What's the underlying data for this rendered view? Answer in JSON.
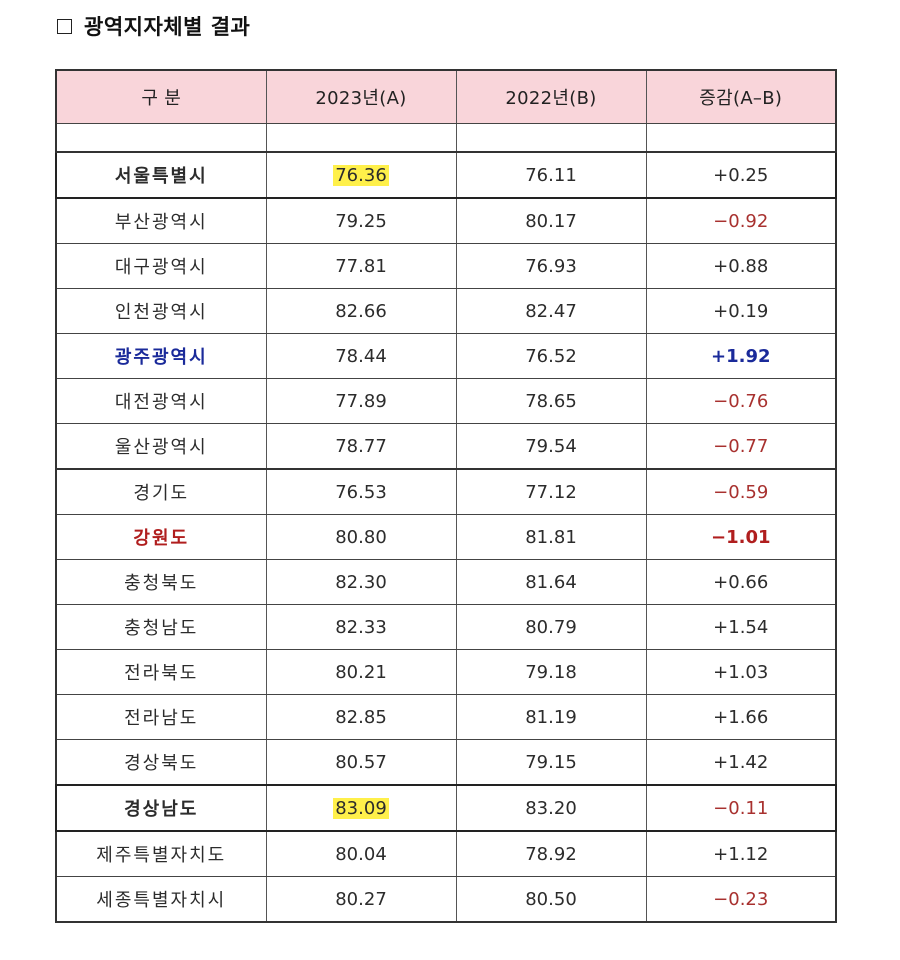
{
  "title": "광역지자체별 결과",
  "columns": [
    "구 분",
    "2023년(A)",
    "2022년(B)",
    "증감(A–B)"
  ],
  "rows": [
    {
      "name": "서울특별시",
      "y2023": "76.36",
      "y2022": "76.11",
      "diff": "+0.25"
    },
    {
      "name": "부산광역시",
      "y2023": "79.25",
      "y2022": "80.17",
      "diff": "−0.92"
    },
    {
      "name": "대구광역시",
      "y2023": "77.81",
      "y2022": "76.93",
      "diff": "+0.88"
    },
    {
      "name": "인천광역시",
      "y2023": "82.66",
      "y2022": "82.47",
      "diff": "+0.19"
    },
    {
      "name": "광주광역시",
      "y2023": "78.44",
      "y2022": "76.52",
      "diff": "+1.92"
    },
    {
      "name": "대전광역시",
      "y2023": "77.89",
      "y2022": "78.65",
      "diff": "−0.76"
    },
    {
      "name": "울산광역시",
      "y2023": "78.77",
      "y2022": "79.54",
      "diff": "−0.77"
    },
    {
      "name": "경기도",
      "y2023": "76.53",
      "y2022": "77.12",
      "diff": "−0.59"
    },
    {
      "name": "강원도",
      "y2023": "80.80",
      "y2022": "81.81",
      "diff": "−1.01"
    },
    {
      "name": "충청북도",
      "y2023": "82.30",
      "y2022": "81.64",
      "diff": "+0.66"
    },
    {
      "name": "충청남도",
      "y2023": "82.33",
      "y2022": "80.79",
      "diff": "+1.54"
    },
    {
      "name": "전라북도",
      "y2023": "80.21",
      "y2022": "79.18",
      "diff": "+1.03"
    },
    {
      "name": "전라남도",
      "y2023": "82.85",
      "y2022": "81.19",
      "diff": "+1.66"
    },
    {
      "name": "경상북도",
      "y2023": "80.57",
      "y2022": "79.15",
      "diff": "+1.42"
    },
    {
      "name": "경상남도",
      "y2023": "83.09",
      "y2022": "83.20",
      "diff": "−0.11"
    },
    {
      "name": "제주특별자치도",
      "y2023": "80.04",
      "y2022": "78.92",
      "diff": "+1.12"
    },
    {
      "name": "세종특별자치시",
      "y2023": "80.27",
      "y2022": "80.50",
      "diff": "−0.23"
    }
  ],
  "colors": {
    "header_bg": "#f9d5da",
    "highlight": "#fff04a",
    "blue_text": "#1a2a9a",
    "red_text": "#b01e1e",
    "negative_text": "#a8312f"
  }
}
